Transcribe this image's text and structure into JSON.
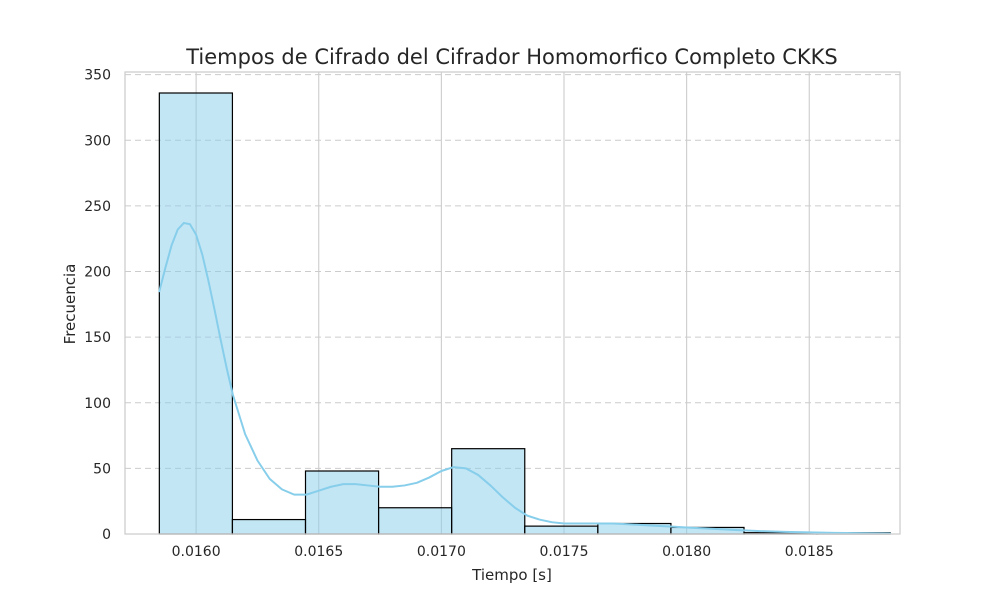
{
  "chart_data": {
    "type": "histogram",
    "title": "Tiempos de Cifrado del Cifrador Homomorfico Completo CKKS",
    "xlabel": "Tiempo [s]",
    "ylabel": "Frecuencia",
    "xlim": [
      0.01571,
      0.01887
    ],
    "ylim": [
      0,
      352
    ],
    "x_ticks": [
      0.016,
      0.0165,
      0.017,
      0.0175,
      0.018,
      0.0185
    ],
    "x_tick_labels": [
      "0.0160",
      "0.0165",
      "0.0170",
      "0.0175",
      "0.0180",
      "0.0185"
    ],
    "y_ticks": [
      0,
      50,
      100,
      150,
      200,
      250,
      300,
      350
    ],
    "y_tick_labels": [
      "0",
      "50",
      "100",
      "150",
      "200",
      "250",
      "300",
      "350"
    ],
    "grid": true,
    "bins": [
      {
        "start": 0.01585,
        "end": 0.016148,
        "count": 336
      },
      {
        "start": 0.016148,
        "end": 0.016446,
        "count": 11
      },
      {
        "start": 0.016446,
        "end": 0.016744,
        "count": 48
      },
      {
        "start": 0.016744,
        "end": 0.017042,
        "count": 20
      },
      {
        "start": 0.017042,
        "end": 0.01734,
        "count": 65
      },
      {
        "start": 0.01734,
        "end": 0.017638,
        "count": 6
      },
      {
        "start": 0.017638,
        "end": 0.017936,
        "count": 8
      },
      {
        "start": 0.017936,
        "end": 0.018234,
        "count": 5
      },
      {
        "start": 0.018234,
        "end": 0.018532,
        "count": 1
      },
      {
        "start": 0.018532,
        "end": 0.01883,
        "count": 1
      }
    ],
    "kde": {
      "x": [
        0.01585,
        0.015875,
        0.0159,
        0.015925,
        0.01595,
        0.015975,
        0.016,
        0.016025,
        0.01605,
        0.016075,
        0.0161,
        0.016125,
        0.01615,
        0.0162,
        0.01625,
        0.0163,
        0.01635,
        0.0164,
        0.01645,
        0.0165,
        0.01655,
        0.0166,
        0.01665,
        0.0167,
        0.01675,
        0.0168,
        0.01685,
        0.0169,
        0.01695,
        0.017,
        0.01705,
        0.0171,
        0.01715,
        0.0172,
        0.01725,
        0.0173,
        0.01735,
        0.0174,
        0.01745,
        0.0175,
        0.01755,
        0.0176,
        0.01765,
        0.0177,
        0.01775,
        0.0178,
        0.01785,
        0.0179,
        0.01795,
        0.018,
        0.0181,
        0.0182,
        0.0183,
        0.0184,
        0.0185,
        0.0186,
        0.0187,
        0.0188,
        0.01883
      ],
      "y": [
        185,
        203,
        220,
        232,
        237,
        236,
        228,
        213,
        193,
        171,
        148,
        126,
        106,
        76,
        56,
        42,
        34,
        30,
        30,
        33,
        36,
        38,
        38,
        37,
        36,
        36,
        37,
        39,
        43,
        48,
        51,
        50,
        45,
        37,
        28,
        20,
        14,
        11,
        9,
        8,
        8,
        8,
        8,
        8,
        7.5,
        7,
        6.5,
        6,
        5.5,
        5,
        4,
        3,
        2.2,
        1.6,
        1.2,
        0.9,
        0.7,
        0.5,
        0.4
      ]
    },
    "colors": {
      "bar_fill": "#87ceeb",
      "bar_edge": "#000000",
      "kde_line": "#87ceeb",
      "grid": "#cccccc",
      "spine": "#cccccc"
    }
  }
}
